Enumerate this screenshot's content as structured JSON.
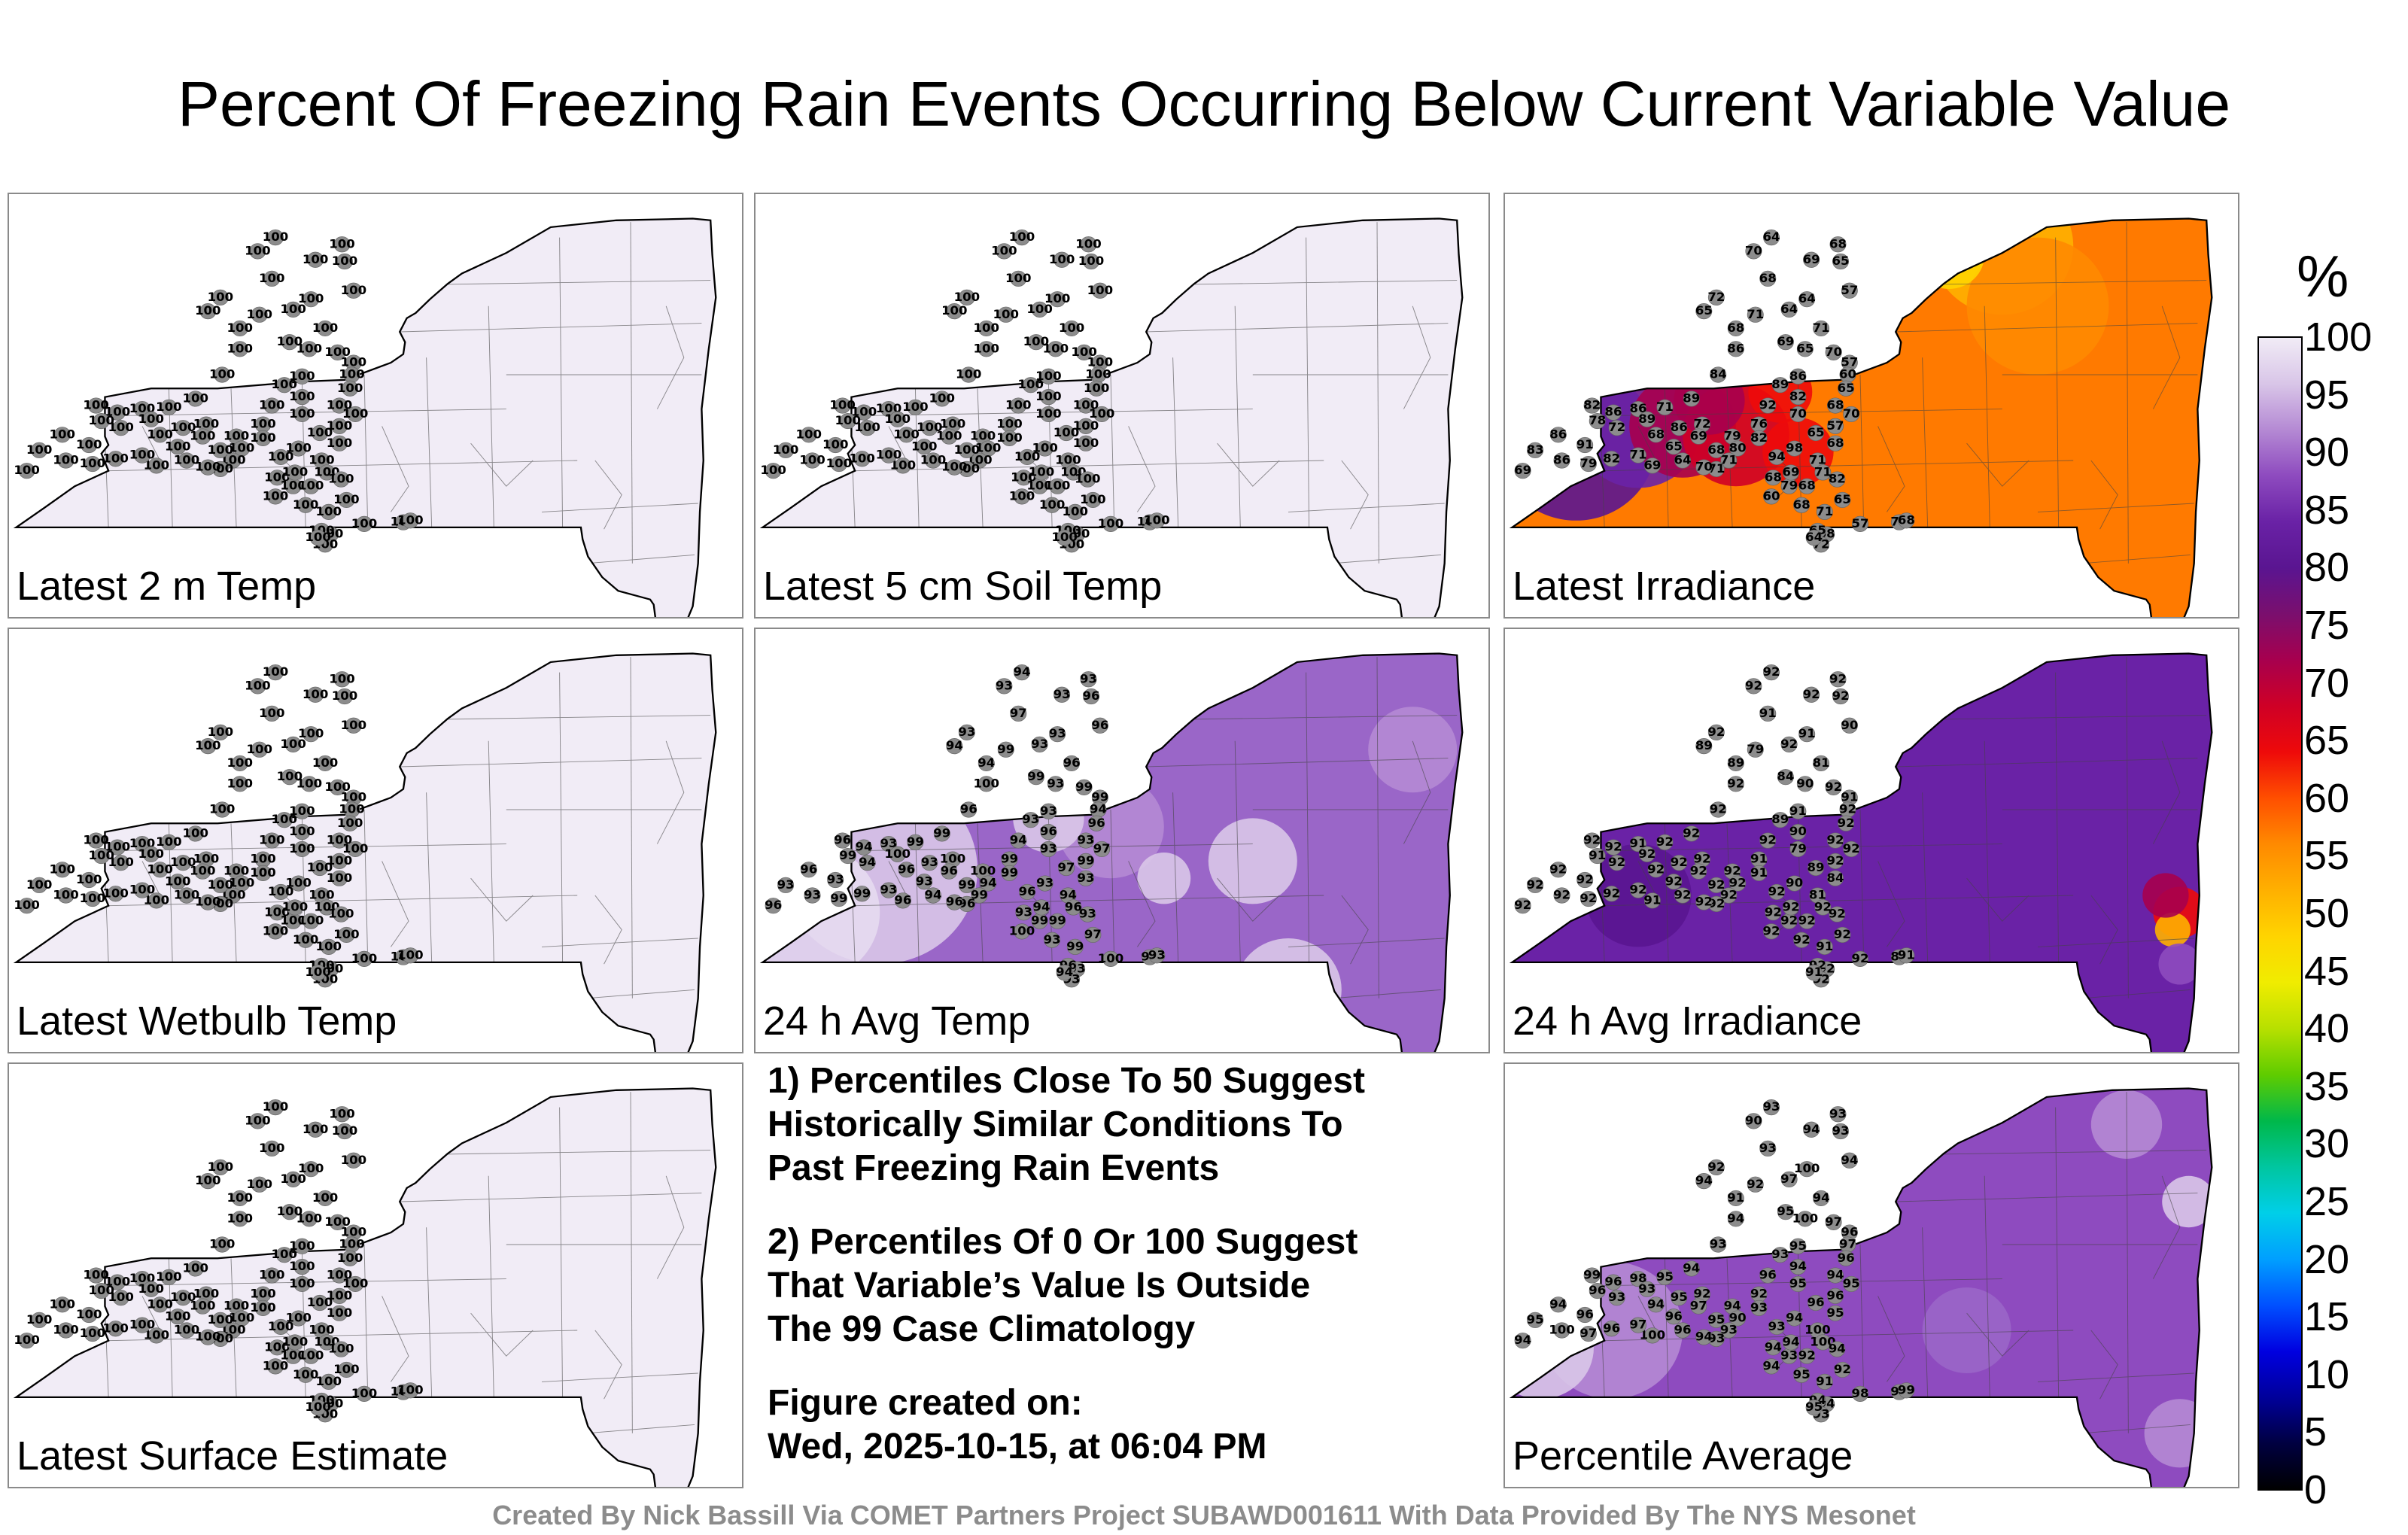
{
  "title": "Percent Of Freezing Rain Events Occurring Below Current Variable Value",
  "colorbar": {
    "unit": "%",
    "ticks": [
      "100",
      "95",
      "90",
      "85",
      "80",
      "75",
      "70",
      "65",
      "60",
      "55",
      "50",
      "45",
      "40",
      "35",
      "30",
      "25",
      "20",
      "15",
      "10",
      "5",
      "0"
    ],
    "colors": [
      "#f1ecf6",
      "#d9c6e8",
      "#b58ad4",
      "#8e4bbf",
      "#6a22a6",
      "#5a1591",
      "#7a0f6e",
      "#a7004e",
      "#cf0026",
      "#ee0a0a",
      "#ff4f00",
      "#ff8a00",
      "#ffb000",
      "#ffd400",
      "#f0ec00",
      "#b7e000",
      "#5fcc00",
      "#00b84a",
      "#00c6a0",
      "#00cfe8",
      "#009fff",
      "#0050ff",
      "#0000e0",
      "#00009a",
      "#000040",
      "#000000"
    ]
  },
  "panels": [
    {
      "id": "latest-2m-temp",
      "label": "Latest 2 m Temp",
      "fill": "#f1ecf6",
      "type": "uniform",
      "value": "100",
      "station_values": [
        "100"
      ]
    },
    {
      "id": "latest-5cm-soil-temp",
      "label": "Latest 5 cm Soil Temp",
      "fill": "#f1ecf6",
      "type": "uniform",
      "value": "100",
      "station_values": [
        "100"
      ]
    },
    {
      "id": "latest-irradiance",
      "label": "Latest Irradiance",
      "fill": "#ff7a00",
      "type": "irradiance",
      "station_values": [
        "64",
        "70",
        "68",
        "65",
        "69",
        "68",
        "72",
        "65",
        "64",
        "57",
        "71",
        "68",
        "69",
        "71",
        "65",
        "70",
        "57",
        "60",
        "65",
        "68",
        "70",
        "57",
        "64",
        "86",
        "84",
        "89",
        "71",
        "86",
        "86",
        "82",
        "78",
        "91",
        "86",
        "83",
        "86",
        "69",
        "72",
        "89",
        "68",
        "86",
        "72",
        "79",
        "76",
        "92",
        "89",
        "86",
        "82",
        "70",
        "65",
        "68",
        "71",
        "98",
        "94",
        "82",
        "80",
        "71",
        "71",
        "68",
        "79",
        "68",
        "69",
        "71",
        "82",
        "65",
        "71",
        "68",
        "60",
        "69",
        "79",
        "82",
        "71"
      ]
    },
    {
      "id": "latest-wetbulb-temp",
      "label": "Latest Wetbulb Temp",
      "fill": "#f1ecf6",
      "type": "uniform",
      "value": "100",
      "station_values": [
        "100"
      ]
    },
    {
      "id": "avg-24h-temp",
      "label": "24 h Avg Temp",
      "fill": "#9a66c8",
      "type": "avgtemp",
      "station_values": [
        "94",
        "93",
        "93",
        "96",
        "93",
        "97",
        "93",
        "94",
        "93",
        "96",
        "99",
        "94",
        "99",
        "96",
        "93",
        "99",
        "99",
        "94",
        "96",
        "93",
        "97",
        "99",
        "93",
        "100",
        "96",
        "99",
        "99",
        "93",
        "94",
        "96",
        "99",
        "93",
        "96",
        "93",
        "93",
        "96",
        "94",
        "100",
        "96",
        "93",
        "100",
        "100",
        "99"
      ]
    },
    {
      "id": "avg-24h-irradiance",
      "label": "24 h Avg Irradiance",
      "fill": "#6a22a6",
      "type": "avgirr",
      "station_values": [
        "92",
        "92",
        "92",
        "92",
        "92",
        "91",
        "92",
        "89",
        "91",
        "90",
        "79",
        "89",
        "84",
        "81",
        "90",
        "92",
        "91",
        "92",
        "92",
        "92",
        "92",
        "92",
        "92",
        "92",
        "92",
        "92",
        "92",
        "91",
        "92",
        "92",
        "91",
        "92",
        "92",
        "92",
        "92",
        "92",
        "92"
      ]
    },
    {
      "id": "latest-surface-estimate",
      "label": "Latest Surface Estimate",
      "fill": "#f1ecf6",
      "type": "uniform",
      "value": "100",
      "station_values": [
        "100"
      ]
    },
    {
      "id": "percentile-average",
      "label": "Percentile Average",
      "fill": "#8e4bbf",
      "type": "avg",
      "station_values": [
        "93",
        "90",
        "93",
        "93",
        "94",
        "93",
        "92",
        "94",
        "100",
        "94",
        "92",
        "91",
        "95",
        "94",
        "100",
        "97",
        "96",
        "97",
        "96",
        "94",
        "95",
        "96",
        "97",
        "94",
        "93",
        "94",
        "95",
        "98",
        "96",
        "99",
        "96",
        "96",
        "94",
        "95",
        "100",
        "94",
        "93",
        "93",
        "94",
        "95",
        "92",
        "94",
        "92",
        "96",
        "93",
        "95",
        "94",
        "95",
        "96",
        "95",
        "100",
        "94",
        "93"
      ]
    }
  ],
  "notes": [
    "1) Percentiles Close To 50 Suggest\nHistorically Similar Conditions To\nPast Freezing Rain Events",
    "2) Percentiles Of 0 Or 100 Suggest\nThat Variable’s Value Is Outside\nThe 99 Case Climatology"
  ],
  "created_label": "Figure created on:",
  "created_date": "Wed, 2025-10-15, at 06:04 PM",
  "footer": "Created By Nick Bassill Via COMET Partners Project SUBAWD001611 With Data Provided By The NYS Mesonet"
}
